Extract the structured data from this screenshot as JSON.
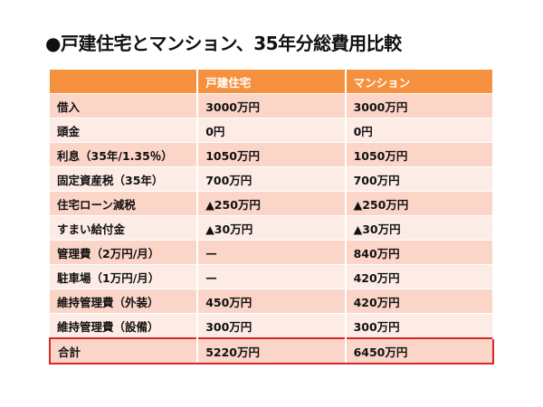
{
  "title": "●戸建住宅とマンション、35年分総費用比較",
  "headers": [
    "",
    "戸建住宅",
    "マンション"
  ],
  "rows": [
    [
      "借入",
      "3000万円",
      "3000万円"
    ],
    [
      "頭金",
      "0円",
      "0円"
    ],
    [
      "利息（35年/1.35％）",
      "1050万円",
      "1050万円"
    ],
    [
      "固定資産税（35年）",
      "700万円",
      "700万円"
    ],
    [
      "住宅ローン減税",
      "▲250万円",
      "▲250万円"
    ],
    [
      "すまい給付金",
      "▲30万円",
      "▲30万円"
    ],
    [
      "管理費（2万円/月）",
      "—",
      "840万円"
    ],
    [
      "駐車場（1万円/月）",
      "—",
      "420万円"
    ],
    [
      "維持管理費（外装）",
      "450万円",
      "420万円"
    ],
    [
      "維持管理費（設備）",
      "300万円",
      "300万円"
    ]
  ],
  "total": [
    "合計",
    "5220万円",
    "6450万円"
  ],
  "colors": {
    "header": "#f5913e",
    "row_odd": "#fbd5c8",
    "row_even": "#fdebe5",
    "total_border": "#d9262b"
  }
}
